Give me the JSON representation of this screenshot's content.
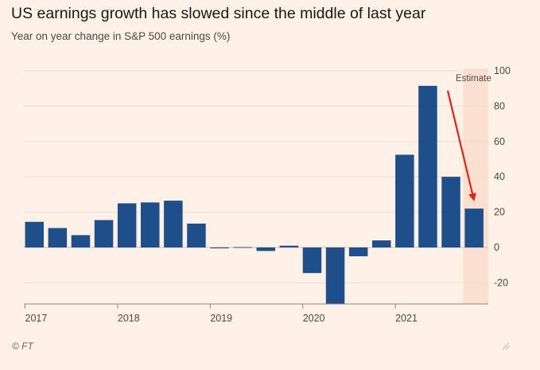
{
  "header": {
    "title": "US earnings growth has slowed since the middle of last year",
    "subtitle": "Year on year change in S&P 500 earnings (%)"
  },
  "footer": {
    "source": "© FT"
  },
  "colors": {
    "background": "#fff1e5",
    "bar": "#1f4f8a",
    "estimate_band": "#fbe0cf",
    "arrow": "#e0201b",
    "grid": "#eadfd5"
  },
  "chart_data": {
    "type": "bar",
    "title": "US earnings growth has slowed since the middle of last year",
    "subtitle": "Year on year change in S&P 500 earnings (%)",
    "xlabel": "",
    "ylabel": "",
    "ylim": [
      -32,
      100
    ],
    "y_ticks": [
      100,
      80,
      60,
      40,
      20,
      0,
      -20
    ],
    "y_tick_labels": [
      "100",
      "80",
      "60",
      "40",
      "20",
      "0",
      "-20"
    ],
    "y_axis_side": "right",
    "grid": true,
    "categories": [
      "2017 Q1",
      "2017 Q2",
      "2017 Q3",
      "2017 Q4",
      "2018 Q1",
      "2018 Q2",
      "2018 Q3",
      "2018 Q4",
      "2019 Q1",
      "2019 Q2",
      "2019 Q3",
      "2019 Q4",
      "2020 Q1",
      "2020 Q2",
      "2020 Q3",
      "2020 Q4",
      "2021 Q1",
      "2021 Q2",
      "2021 Q3",
      "2021 Q4"
    ],
    "values": [
      14.5,
      11,
      7,
      15.5,
      25,
      25.5,
      26.5,
      13.5,
      -0.5,
      0,
      -2,
      1,
      -14.5,
      -32,
      -5,
      4,
      52.5,
      91.5,
      40,
      22
    ],
    "year_labels": [
      "2017",
      "2018",
      "2019",
      "2020",
      "2021"
    ],
    "estimate": {
      "label": "Estimate",
      "categories": [
        "2021 Q4"
      ]
    },
    "annotations": [
      {
        "type": "arrow",
        "target": "2021 Q4",
        "color": "#e0201b"
      }
    ]
  }
}
